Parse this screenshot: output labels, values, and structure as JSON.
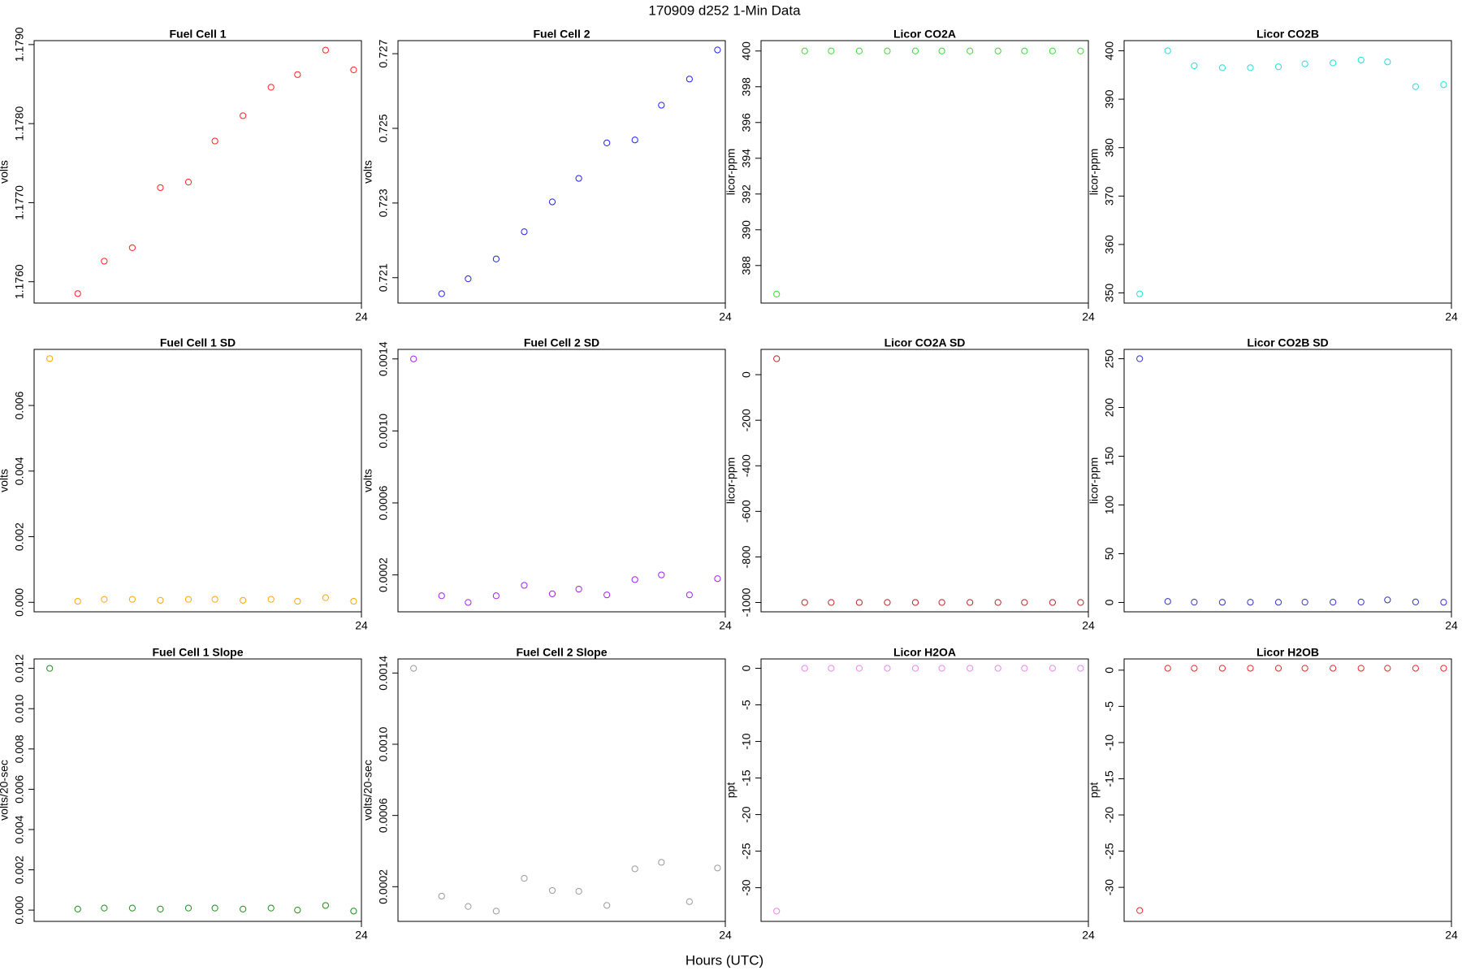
{
  "title": "170909   d252   1-Min Data",
  "xlabel": "Hours (UTC)",
  "chart_data": [
    {
      "type": "scatter",
      "title": "Fuel Cell 1",
      "ylabel": "volts",
      "color": "#ff2020",
      "x": [
        23.8,
        23.818,
        23.835,
        23.853,
        23.871,
        23.889,
        23.906,
        23.924,
        23.942,
        23.959,
        23.977,
        23.995
      ],
      "xlim": [
        23.79,
        24
      ],
      "xticks": [
        24
      ],
      "values": [
        null,
        1.17585,
        1.17626,
        1.17643,
        1.17719,
        1.17726,
        1.17778,
        1.1781,
        1.17846,
        1.17862,
        1.17893,
        1.17868
      ],
      "ylim": [
        1.17573,
        1.17905
      ],
      "yticks": [
        {
          "value": 1.176,
          "label": "1.1760"
        },
        {
          "value": 1.177,
          "label": "1.1770"
        },
        {
          "value": 1.178,
          "label": "1.1780"
        },
        {
          "value": 1.179,
          "label": "1.1790"
        }
      ]
    },
    {
      "type": "scatter",
      "title": "Fuel Cell 2",
      "ylabel": "volts",
      "color": "#2020ee",
      "x": [
        23.8,
        23.818,
        23.835,
        23.853,
        23.871,
        23.889,
        23.906,
        23.924,
        23.942,
        23.959,
        23.977,
        23.995
      ],
      "xlim": [
        23.79,
        24
      ],
      "xticks": [
        24
      ],
      "values": [
        null,
        0.72057,
        0.72097,
        0.7215,
        0.72223,
        0.72303,
        0.72366,
        0.72461,
        0.72469,
        0.72562,
        0.72632,
        0.7271
      ],
      "ylim": [
        0.72032,
        0.72735
      ],
      "yticks": [
        0.721,
        0.723,
        0.725,
        0.727
      ]
    },
    {
      "type": "scatter",
      "title": "Licor CO2A",
      "ylabel": "licor-ppm",
      "color": "#33dd33",
      "x": [
        23.8,
        23.818,
        23.835,
        23.853,
        23.871,
        23.889,
        23.906,
        23.924,
        23.942,
        23.959,
        23.977,
        23.995
      ],
      "xlim": [
        23.79,
        24
      ],
      "xticks": [
        24
      ],
      "values": [
        386.4,
        400,
        400,
        400,
        400,
        400,
        400,
        400,
        400,
        400,
        400,
        400
      ],
      "ylim": [
        385.9,
        400.58
      ],
      "yticks": [
        388,
        390,
        392,
        394,
        396,
        398,
        400
      ]
    },
    {
      "type": "scatter",
      "title": "Licor CO2B",
      "ylabel": "licor-ppm",
      "color": "#22dddd",
      "x": [
        23.8,
        23.818,
        23.835,
        23.853,
        23.871,
        23.889,
        23.906,
        23.924,
        23.942,
        23.959,
        23.977,
        23.995
      ],
      "xlim": [
        23.79,
        24
      ],
      "xticks": [
        24
      ],
      "values": [
        349.8,
        400,
        396.9,
        396.5,
        396.5,
        396.7,
        397.3,
        397.5,
        398.1,
        397.7,
        392.6,
        393
      ],
      "ylim": [
        347.9,
        402.1
      ],
      "yticks": [
        350,
        360,
        370,
        380,
        390,
        400
      ]
    },
    {
      "type": "scatter",
      "title": "Fuel Cell 1 SD",
      "ylabel": "volts",
      "color": "#ffa500",
      "x": [
        23.8,
        23.818,
        23.835,
        23.853,
        23.871,
        23.889,
        23.906,
        23.924,
        23.942,
        23.959,
        23.977,
        23.995
      ],
      "xlim": [
        23.79,
        24
      ],
      "xticks": [
        24
      ],
      "values": [
        0.00743,
        3e-05,
        9e-05,
        9e-05,
        6e-05,
        9e-05,
        9e-05,
        6e-05,
        9e-05,
        3e-05,
        0.00014,
        3e-05
      ],
      "ylim": [
        -0.00029,
        0.00771
      ],
      "yticks": [
        {
          "value": 0,
          "label": "0.000"
        },
        0.002,
        0.004,
        0.006
      ]
    },
    {
      "type": "scatter",
      "title": "Fuel Cell 2 SD",
      "ylabel": "volts",
      "color": "#a020f0",
      "x": [
        23.8,
        23.818,
        23.835,
        23.853,
        23.871,
        23.889,
        23.906,
        23.924,
        23.942,
        23.959,
        23.977,
        23.995
      ],
      "xlim": [
        23.79,
        24
      ],
      "xticks": [
        24
      ],
      "values": [
        0.0014,
        8.4e-05,
        4.7e-05,
        8.4e-05,
        0.000142,
        9.5e-05,
        0.000121,
        8.9e-05,
        0.000174,
        0.0002,
        8.9e-05,
        0.000179
      ],
      "ylim": [
        -5e-06,
        0.001453
      ],
      "yticks": [
        0.0002,
        0.0006,
        {
          "value": 0.001,
          "label": "0.0010"
        },
        0.0014
      ]
    },
    {
      "type": "scatter",
      "title": "Licor CO2A SD",
      "ylabel": "licor-ppm",
      "color": "#b22222",
      "x": [
        23.8,
        23.818,
        23.835,
        23.853,
        23.871,
        23.889,
        23.906,
        23.924,
        23.942,
        23.959,
        23.977,
        23.995
      ],
      "xlim": [
        23.79,
        24
      ],
      "xticks": [
        24
      ],
      "values": [
        70,
        -1000,
        -1000,
        -1000,
        -1000,
        -1000,
        -1000,
        -1000,
        -1000,
        -1000,
        -1000,
        -1000
      ],
      "ylim": [
        -1041,
        111
      ],
      "yticks": [
        -1000,
        -800,
        -600,
        -400,
        -200,
        0
      ]
    },
    {
      "type": "scatter",
      "title": "Licor CO2B SD",
      "ylabel": "licor-ppm",
      "color": "#3030c0",
      "x": [
        23.8,
        23.818,
        23.835,
        23.853,
        23.871,
        23.889,
        23.906,
        23.924,
        23.942,
        23.959,
        23.977,
        23.995
      ],
      "xlim": [
        23.79,
        24
      ],
      "xticks": [
        24
      ],
      "values": [
        250,
        1,
        0.3,
        0.2,
        0.2,
        0.2,
        0.3,
        0.3,
        0.4,
        2.6,
        0.5,
        0.2
      ],
      "ylim": [
        -9.6,
        259.6
      ],
      "yticks": [
        0,
        50,
        100,
        150,
        200,
        250
      ]
    },
    {
      "type": "scatter",
      "title": "Fuel Cell 1 Slope",
      "ylabel": "volts/20-sec",
      "color": "#1a8c1a",
      "x": [
        23.8,
        23.818,
        23.835,
        23.853,
        23.871,
        23.889,
        23.906,
        23.924,
        23.942,
        23.959,
        23.977,
        23.995
      ],
      "xlim": [
        23.79,
        24
      ],
      "xticks": [
        24
      ],
      "values": [
        0.012,
        5e-05,
        0.0001,
        0.0001,
        5e-05,
        0.0001,
        0.0001,
        5e-05,
        0.0001,
        0,
        0.00023,
        -5e-05
      ],
      "ylim": [
        -0.00056,
        0.01247
      ],
      "yticks": [
        {
          "value": 0,
          "label": "0.000"
        },
        0.002,
        0.004,
        0.006,
        0.008,
        {
          "value": 0.01,
          "label": "0.010"
        },
        0.012
      ]
    },
    {
      "type": "scatter",
      "title": "Fuel Cell 2 Slope",
      "ylabel": "volts/20-sec",
      "color": "#999999",
      "x": [
        23.8,
        23.818,
        23.835,
        23.853,
        23.871,
        23.889,
        23.906,
        23.924,
        23.942,
        23.959,
        23.977,
        23.995
      ],
      "xlim": [
        23.79,
        24
      ],
      "xticks": [
        24
      ],
      "values": [
        0.001426,
        0.000147,
        8.9e-05,
        6.3e-05,
        0.000247,
        0.000179,
        0.000174,
        9.5e-05,
        0.0003,
        0.000337,
        0.000116,
        0.000305
      ],
      "ylim": [
        5.3e-06,
        0.001479
      ],
      "yticks": [
        0.0002,
        0.0006,
        {
          "value": 0.001,
          "label": "0.0010"
        },
        0.0014
      ]
    },
    {
      "type": "scatter",
      "title": "Licor H2OA",
      "ylabel": "ppt",
      "color": "#ee82ee",
      "x": [
        23.8,
        23.818,
        23.835,
        23.853,
        23.871,
        23.889,
        23.906,
        23.924,
        23.942,
        23.959,
        23.977,
        23.995
      ],
      "xlim": [
        23.79,
        24
      ],
      "xticks": [
        24
      ],
      "values": [
        -33.2,
        0,
        0,
        0,
        0,
        0,
        0,
        0,
        0,
        0,
        0,
        0
      ],
      "ylim": [
        -34.6,
        1.28
      ],
      "yticks": [
        -30,
        -25,
        -20,
        -15,
        -10,
        -5,
        0
      ]
    },
    {
      "type": "scatter",
      "title": "Licor H2OB",
      "ylabel": "ppt",
      "color": "#ee2222",
      "x": [
        23.8,
        23.818,
        23.835,
        23.853,
        23.871,
        23.889,
        23.906,
        23.924,
        23.942,
        23.959,
        23.977,
        23.995
      ],
      "xlim": [
        23.79,
        24
      ],
      "xticks": [
        24
      ],
      "values": [
        -33.2,
        0.26,
        0.26,
        0.26,
        0.26,
        0.26,
        0.26,
        0.26,
        0.26,
        0.26,
        0.26,
        0.26
      ],
      "ylim": [
        -34.7,
        1.55
      ],
      "yticks": [
        -30,
        -25,
        -20,
        -15,
        -10,
        -5,
        0
      ]
    }
  ]
}
